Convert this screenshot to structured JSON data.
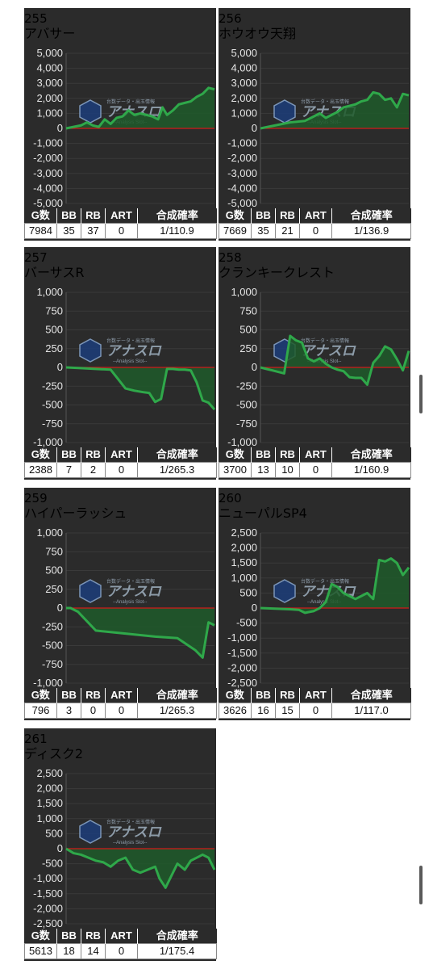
{
  "stat_headers": [
    "G数",
    "BB",
    "RB",
    "ART",
    "合成確率"
  ],
  "watermark": {
    "top": "台数データ・出玉情報",
    "main": "アナスロ",
    "sub": "--Analysis Slot--"
  },
  "colors": {
    "line": "#2fa84a",
    "fill": "#1f5a2a",
    "zero": "#d11a1a",
    "grid": "#3a3a3a",
    "panel": "#2b2b2b"
  },
  "chart_data": [
    {
      "type": "area",
      "number": "255",
      "title": "アバサー",
      "ylim": [
        -5000,
        5000
      ],
      "yticks": [
        "5,000",
        "4,000",
        "3,000",
        "2,000",
        "1,000",
        "0",
        "-1,000",
        "-2,000",
        "-3,000",
        "-4,000",
        "-5,000"
      ],
      "x": [
        0,
        0.05,
        0.1,
        0.14,
        0.18,
        0.22,
        0.26,
        0.3,
        0.34,
        0.38,
        0.42,
        0.46,
        0.5,
        0.54,
        0.58,
        0.62,
        0.65,
        0.68,
        0.72,
        0.76,
        0.8,
        0.84,
        0.88,
        0.92,
        0.96,
        1.0
      ],
      "y": [
        0,
        100,
        200,
        400,
        200,
        100,
        600,
        300,
        700,
        800,
        1200,
        900,
        1000,
        900,
        800,
        600,
        1400,
        900,
        1200,
        1600,
        1700,
        1800,
        2100,
        2300,
        2700,
        2600
      ],
      "stats": [
        "7984",
        "35",
        "37",
        "0",
        "1/110.9"
      ]
    },
    {
      "type": "area",
      "number": "256",
      "title": "ホウオウ天翔",
      "ylim": [
        -5000,
        5000
      ],
      "yticks": [
        "5,000",
        "4,000",
        "3,000",
        "2,000",
        "1,000",
        "0",
        "-1,000",
        "-2,000",
        "-3,000",
        "-4,000",
        "-5,000"
      ],
      "x": [
        0,
        0.1,
        0.2,
        0.3,
        0.36,
        0.4,
        0.44,
        0.48,
        0.52,
        0.56,
        0.6,
        0.64,
        0.68,
        0.72,
        0.76,
        0.8,
        0.84,
        0.88,
        0.92,
        0.96,
        1.0
      ],
      "y": [
        0,
        200,
        400,
        500,
        800,
        1000,
        700,
        900,
        1100,
        1400,
        1500,
        1600,
        1800,
        1900,
        2400,
        2300,
        1900,
        2000,
        1400,
        2300,
        2200
      ],
      "stats": [
        "7669",
        "35",
        "21",
        "0",
        "1/136.9"
      ]
    },
    {
      "type": "area",
      "number": "257",
      "title": "バーサスR",
      "ylim": [
        -1000,
        1000
      ],
      "yticks": [
        "1,000",
        "750",
        "500",
        "250",
        "0",
        "-250",
        "-500",
        "-750",
        "-1,000"
      ],
      "x": [
        0,
        0.1,
        0.2,
        0.3,
        0.34,
        0.4,
        0.46,
        0.52,
        0.56,
        0.6,
        0.64,
        0.68,
        0.72,
        0.76,
        0.8,
        0.84,
        0.88,
        0.92,
        0.96,
        1.0
      ],
      "y": [
        0,
        -10,
        -20,
        -30,
        -130,
        -280,
        -310,
        -330,
        -340,
        -460,
        -420,
        -20,
        -20,
        -30,
        -30,
        -40,
        -200,
        -440,
        -470,
        -560
      ],
      "stats": [
        "2388",
        "7",
        "2",
        "0",
        "1/265.3"
      ]
    },
    {
      "type": "area",
      "number": "258",
      "title": "クランキークレスト",
      "ylim": [
        -1000,
        1000
      ],
      "yticks": [
        "1,000",
        "750",
        "500",
        "250",
        "0",
        "-250",
        "-500",
        "-750",
        "-1,000"
      ],
      "x": [
        0,
        0.04,
        0.08,
        0.12,
        0.16,
        0.2,
        0.24,
        0.28,
        0.32,
        0.36,
        0.4,
        0.44,
        0.48,
        0.52,
        0.56,
        0.6,
        0.64,
        0.68,
        0.72,
        0.76,
        0.8,
        0.84,
        0.88,
        0.92,
        0.96,
        1.0
      ],
      "y": [
        0,
        -20,
        -40,
        -60,
        -80,
        420,
        360,
        330,
        120,
        80,
        120,
        50,
        0,
        -30,
        -50,
        -130,
        -140,
        -140,
        -230,
        60,
        150,
        280,
        240,
        110,
        -40,
        220
      ],
      "stats": [
        "3700",
        "13",
        "10",
        "0",
        "1/160.9"
      ]
    },
    {
      "type": "area",
      "number": "259",
      "title": "ハイパーラッシュ",
      "ylim": [
        -1000,
        1000
      ],
      "yticks": [
        "1,000",
        "750",
        "500",
        "250",
        "0",
        "-250",
        "-500",
        "-750",
        "-1,000"
      ],
      "x": [
        0,
        0.03,
        0.08,
        0.2,
        0.4,
        0.6,
        0.75,
        0.87,
        0.92,
        0.96,
        1.0
      ],
      "y": [
        0,
        0,
        -50,
        -300,
        -340,
        -380,
        -400,
        -560,
        -660,
        -190,
        -230
      ],
      "stats": [
        "796",
        "3",
        "0",
        "0",
        "1/265.3"
      ]
    },
    {
      "type": "area",
      "number": "260",
      "title": "ニューパルSP4",
      "ylim": [
        -2500,
        2500
      ],
      "yticks": [
        "2,500",
        "2,000",
        "1,500",
        "1,000",
        "500",
        "0",
        "-500",
        "-1,000",
        "-1,500",
        "-2,000",
        "-2,500"
      ],
      "x": [
        0,
        0.1,
        0.2,
        0.26,
        0.3,
        0.36,
        0.4,
        0.44,
        0.48,
        0.52,
        0.56,
        0.6,
        0.64,
        0.68,
        0.72,
        0.76,
        0.8,
        0.84,
        0.88,
        0.92,
        0.96,
        1.0
      ],
      "y": [
        0,
        -20,
        -40,
        -60,
        -160,
        -100,
        0,
        200,
        800,
        700,
        500,
        400,
        300,
        400,
        500,
        300,
        1600,
        1550,
        1650,
        1500,
        1100,
        1350
      ],
      "stats": [
        "3626",
        "16",
        "15",
        "0",
        "1/117.0"
      ]
    },
    {
      "type": "area",
      "number": "261",
      "title": "ディスク2",
      "ylim": [
        -2500,
        2500
      ],
      "yticks": [
        "2,500",
        "2,000",
        "1,500",
        "1,000",
        "500",
        "0",
        "-500",
        "-1,000",
        "-1,500",
        "-2,000",
        "-2,500"
      ],
      "x": [
        0,
        0.05,
        0.1,
        0.15,
        0.2,
        0.25,
        0.3,
        0.35,
        0.4,
        0.45,
        0.5,
        0.55,
        0.6,
        0.63,
        0.67,
        0.71,
        0.75,
        0.8,
        0.84,
        0.88,
        0.92,
        0.96,
        1.0
      ],
      "y": [
        0,
        -150,
        -200,
        -300,
        -400,
        -450,
        -600,
        -400,
        -300,
        -700,
        -800,
        -700,
        -600,
        -1000,
        -1300,
        -900,
        -500,
        -700,
        -400,
        -300,
        -200,
        -300,
        -700
      ],
      "stats": [
        "5613",
        "18",
        "14",
        "0",
        "1/175.4"
      ]
    }
  ]
}
